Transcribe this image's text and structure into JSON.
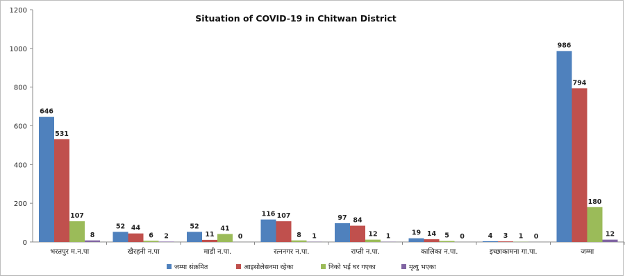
{
  "chart_data": {
    "type": "bar",
    "title": "Situation of  COVID-19  in Chitwan District",
    "categories": [
      "भरतपुर म.न.पा",
      "खैरहनी न.पा",
      "माडी न.पा.",
      "रत्ननगर न.पा.",
      "राप्ती न.पा.",
      "कालिका न.पा.",
      "इच्छाकामना गा.पा.",
      "जम्मा"
    ],
    "series": [
      {
        "name": "जम्मा संक्रमित",
        "color": "#4f81bd",
        "values": [
          646,
          52,
          52,
          116,
          97,
          19,
          4,
          986
        ]
      },
      {
        "name": "आइसोलेसनमा रहेका",
        "color": "#c0504d",
        "values": [
          531,
          44,
          11,
          107,
          84,
          14,
          3,
          794
        ]
      },
      {
        "name": "निको भई घर गएका",
        "color": "#9bbb59",
        "values": [
          107,
          6,
          41,
          8,
          12,
          5,
          1,
          180
        ]
      },
      {
        "name": "मृत्यु भएका",
        "color": "#8064a2",
        "values": [
          8,
          2,
          0,
          1,
          1,
          0,
          0,
          12
        ]
      }
    ],
    "ylim": [
      0,
      1200
    ],
    "yticks": [
      "0",
      "200",
      "400",
      "600",
      "800",
      "1000",
      "1200"
    ],
    "grid": false,
    "legend_position": "bottom"
  }
}
